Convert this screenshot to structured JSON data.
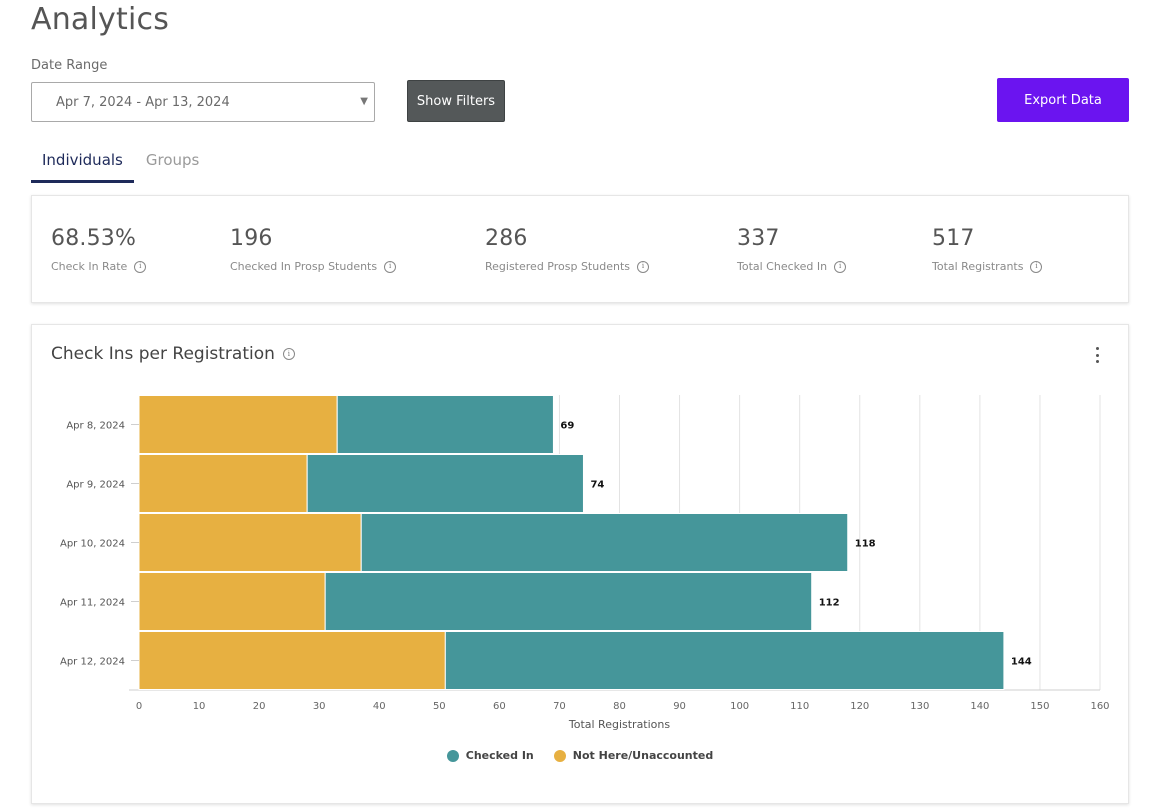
{
  "page": {
    "title": "Analytics"
  },
  "filters": {
    "date_range_label": "Date Range",
    "date_range_value": "Apr 7, 2024 - Apr 13, 2024",
    "show_filters_label": "Show Filters",
    "export_label": "Export Data"
  },
  "tabs": [
    {
      "label": "Individuals",
      "active": true
    },
    {
      "label": "Groups",
      "active": false
    }
  ],
  "stats": [
    {
      "value": "68.53%",
      "label": "Check In Rate"
    },
    {
      "value": "196",
      "label": "Checked In Prosp Students"
    },
    {
      "value": "286",
      "label": "Registered Prosp Students"
    },
    {
      "value": "337",
      "label": "Total Checked In"
    },
    {
      "value": "517",
      "label": "Total Registrants"
    }
  ],
  "colors": {
    "checked_in": "#45969a",
    "not_here": "#e7b041",
    "accent": "#6b14f0",
    "tab_active": "#1e2a5a"
  },
  "chart_data": {
    "type": "bar",
    "orientation": "horizontal",
    "stacked": true,
    "title": "Check Ins per Registration",
    "xlabel": "Total Registrations",
    "ylabel": "",
    "categories": [
      "Apr 8, 2024",
      "Apr 9, 2024",
      "Apr 10, 2024",
      "Apr 11, 2024",
      "Apr 12, 2024"
    ],
    "series": [
      {
        "name": "Not Here/Unaccounted",
        "values": [
          33,
          28,
          37,
          31,
          51
        ]
      },
      {
        "name": "Checked In",
        "values": [
          36,
          46,
          81,
          81,
          93
        ]
      }
    ],
    "totals": [
      69,
      74,
      118,
      112,
      144
    ],
    "xlim": [
      0,
      160
    ],
    "xticks": [
      0,
      10,
      20,
      30,
      40,
      50,
      60,
      70,
      80,
      90,
      100,
      110,
      120,
      130,
      140,
      150,
      160
    ],
    "grid": true,
    "legend_position": "bottom",
    "legend": [
      "Checked In",
      "Not Here/Unaccounted"
    ]
  }
}
